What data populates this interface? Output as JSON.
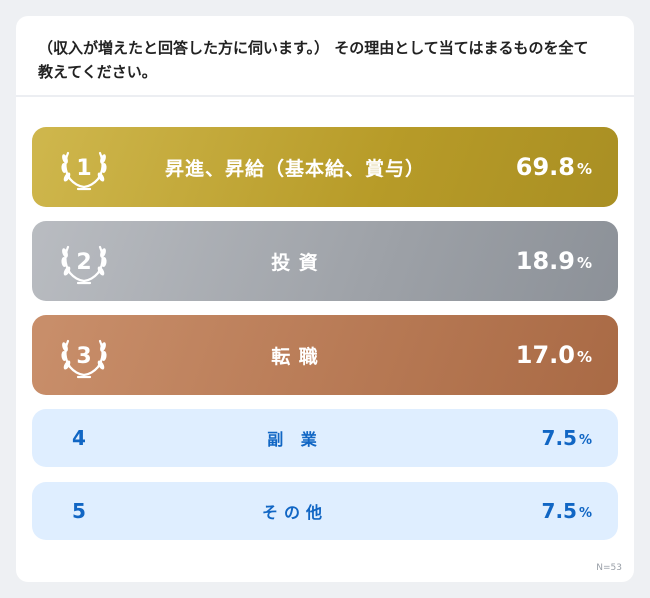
{
  "question": "（収入が増えたと回答した方に伺います。） その理由として当てはまるものを全て教えてください。",
  "items": [
    {
      "rank": "1",
      "label": "昇進、昇給（基本給、賞与）",
      "value": "69.8",
      "unit": "%",
      "tier": "gold"
    },
    {
      "rank": "2",
      "label": "投 資",
      "value": "18.9",
      "unit": "%",
      "tier": "silver"
    },
    {
      "rank": "3",
      "label": "転 職",
      "value": "17.0",
      "unit": "%",
      "tier": "bronze"
    },
    {
      "rank": "4",
      "label": "副 業",
      "value": "7.5",
      "unit": "%",
      "tier": "plain"
    },
    {
      "rank": "5",
      "label": "その他",
      "value": "7.5",
      "unit": "%",
      "tier": "plain"
    }
  ],
  "sample_note": "N=53",
  "colors": {
    "gold": "#b79b28",
    "silver": "#9da1a7",
    "bronze": "#b67853",
    "plain_bg": "#dfeeff",
    "plain_text": "#1166c4"
  }
}
